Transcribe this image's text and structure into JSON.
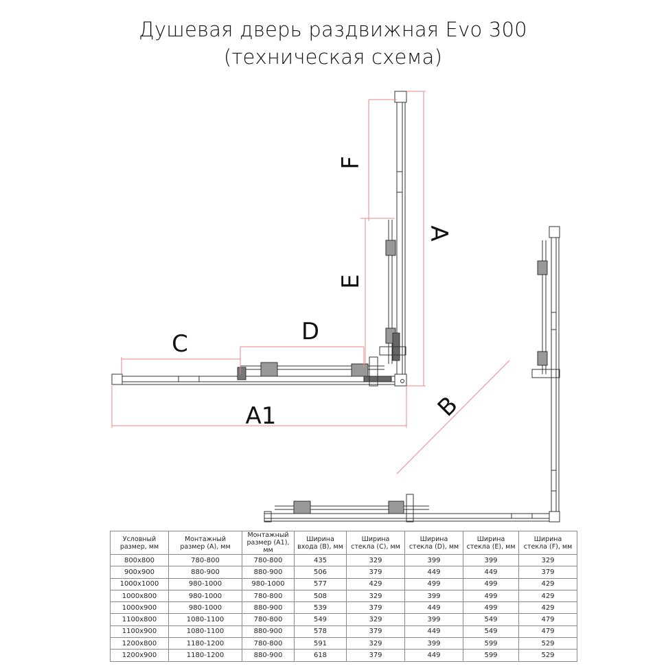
{
  "title": {
    "line1": "Душевая дверь раздвижная Evo 300",
    "line2": "(техническая схема)"
  },
  "dimension_labels": {
    "A": "A",
    "A1": "A1",
    "B": "B",
    "C": "C",
    "D": "D",
    "E": "E",
    "F": "F"
  },
  "colors": {
    "dimension_line": "#e88a8a",
    "profile": "#333333"
  },
  "table": {
    "headers": [
      [
        "Условный",
        "размер, мм"
      ],
      [
        "Монтажный",
        "размер (A), мм"
      ],
      [
        "Монтажный",
        "размер (A1), мм"
      ],
      [
        "Ширина",
        "входа (B), мм"
      ],
      [
        "Ширина",
        "стекла (C), мм"
      ],
      [
        "Ширина",
        "стекла (D), мм"
      ],
      [
        "Ширина",
        "стекла (E), мм"
      ],
      [
        "Ширина",
        "стекла (F), мм"
      ]
    ],
    "rows": [
      [
        "800x800",
        "780-800",
        "780-800",
        "435",
        "329",
        "399",
        "399",
        "329"
      ],
      [
        "900x900",
        "880-900",
        "880-900",
        "506",
        "379",
        "449",
        "449",
        "379"
      ],
      [
        "1000x1000",
        "980-1000",
        "980-1000",
        "577",
        "429",
        "499",
        "499",
        "429"
      ],
      [
        "1000x800",
        "980-1000",
        "780-800",
        "508",
        "329",
        "399",
        "499",
        "429"
      ],
      [
        "1000x900",
        "980-1000",
        "880-900",
        "539",
        "379",
        "449",
        "499",
        "429"
      ],
      [
        "1100x800",
        "1080-1100",
        "780-800",
        "549",
        "329",
        "399",
        "549",
        "479"
      ],
      [
        "1100x900",
        "1080-1100",
        "880-900",
        "578",
        "379",
        "449",
        "549",
        "479"
      ],
      [
        "1200x800",
        "1180-1200",
        "780-800",
        "591",
        "329",
        "399",
        "599",
        "529"
      ],
      [
        "1200x900",
        "1180-1200",
        "880-900",
        "618",
        "379",
        "449",
        "599",
        "529"
      ]
    ]
  }
}
